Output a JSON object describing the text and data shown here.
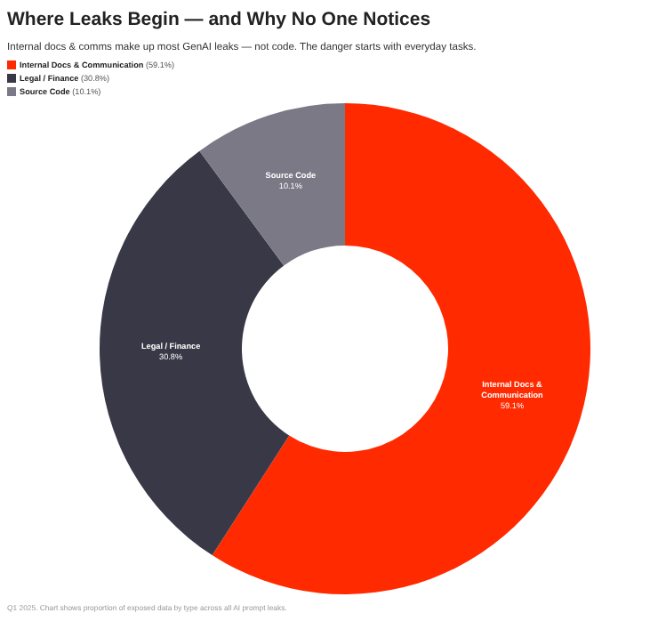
{
  "chart_data": {
    "type": "donut",
    "title": "Where Leaks Begin — and Why No One Notices",
    "subtitle": "Internal docs & comms make up most GenAI leaks — not code. The danger starts with everyday tasks.",
    "categories": [
      "Internal Docs & Communication",
      "Legal / Finance",
      "Source Code"
    ],
    "values": [
      59.1,
      30.8,
      10.1
    ],
    "colors": [
      "#ff2a00",
      "#393846",
      "#7b7985"
    ],
    "value_labels": [
      "59.1%",
      "30.8%",
      "10.1%"
    ],
    "legend": "top left",
    "annotations": [
      "(59.1%)",
      "(30.8%)",
      "(10.1%)",
      "Q1 2025. Chart shows proportion of exposed data by type across all AI prompt leaks."
    ]
  }
}
